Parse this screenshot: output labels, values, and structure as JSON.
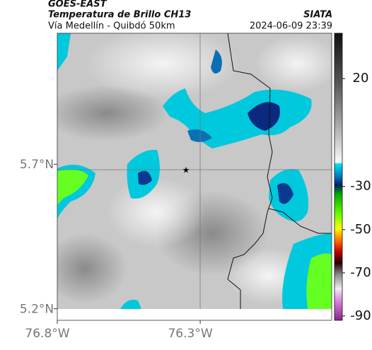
{
  "header": {
    "satellite": "GOES-EAST",
    "product": "Temperatura de Brillo CH13",
    "route": "Vía Medellín - Quibdó 50km",
    "source": "SIATA",
    "timestamp": "2024-06-09 23:39"
  },
  "map": {
    "lonlim": [
      -76.8,
      -75.84
    ],
    "latlim": [
      5.16,
      6.153
    ],
    "lat_ticks": [
      {
        "value": 5.7,
        "label": "5.7°N"
      },
      {
        "value": 5.2,
        "label": "5.2°N"
      }
    ],
    "lon_ticks": [
      {
        "value": -76.8,
        "label": "76.8°W"
      },
      {
        "value": -76.3,
        "label": "76.3°W"
      }
    ]
  },
  "colorbar": {
    "lim": [
      -92,
      41
    ],
    "ticks": [
      20,
      -30,
      -50,
      -70,
      -90
    ]
  }
}
